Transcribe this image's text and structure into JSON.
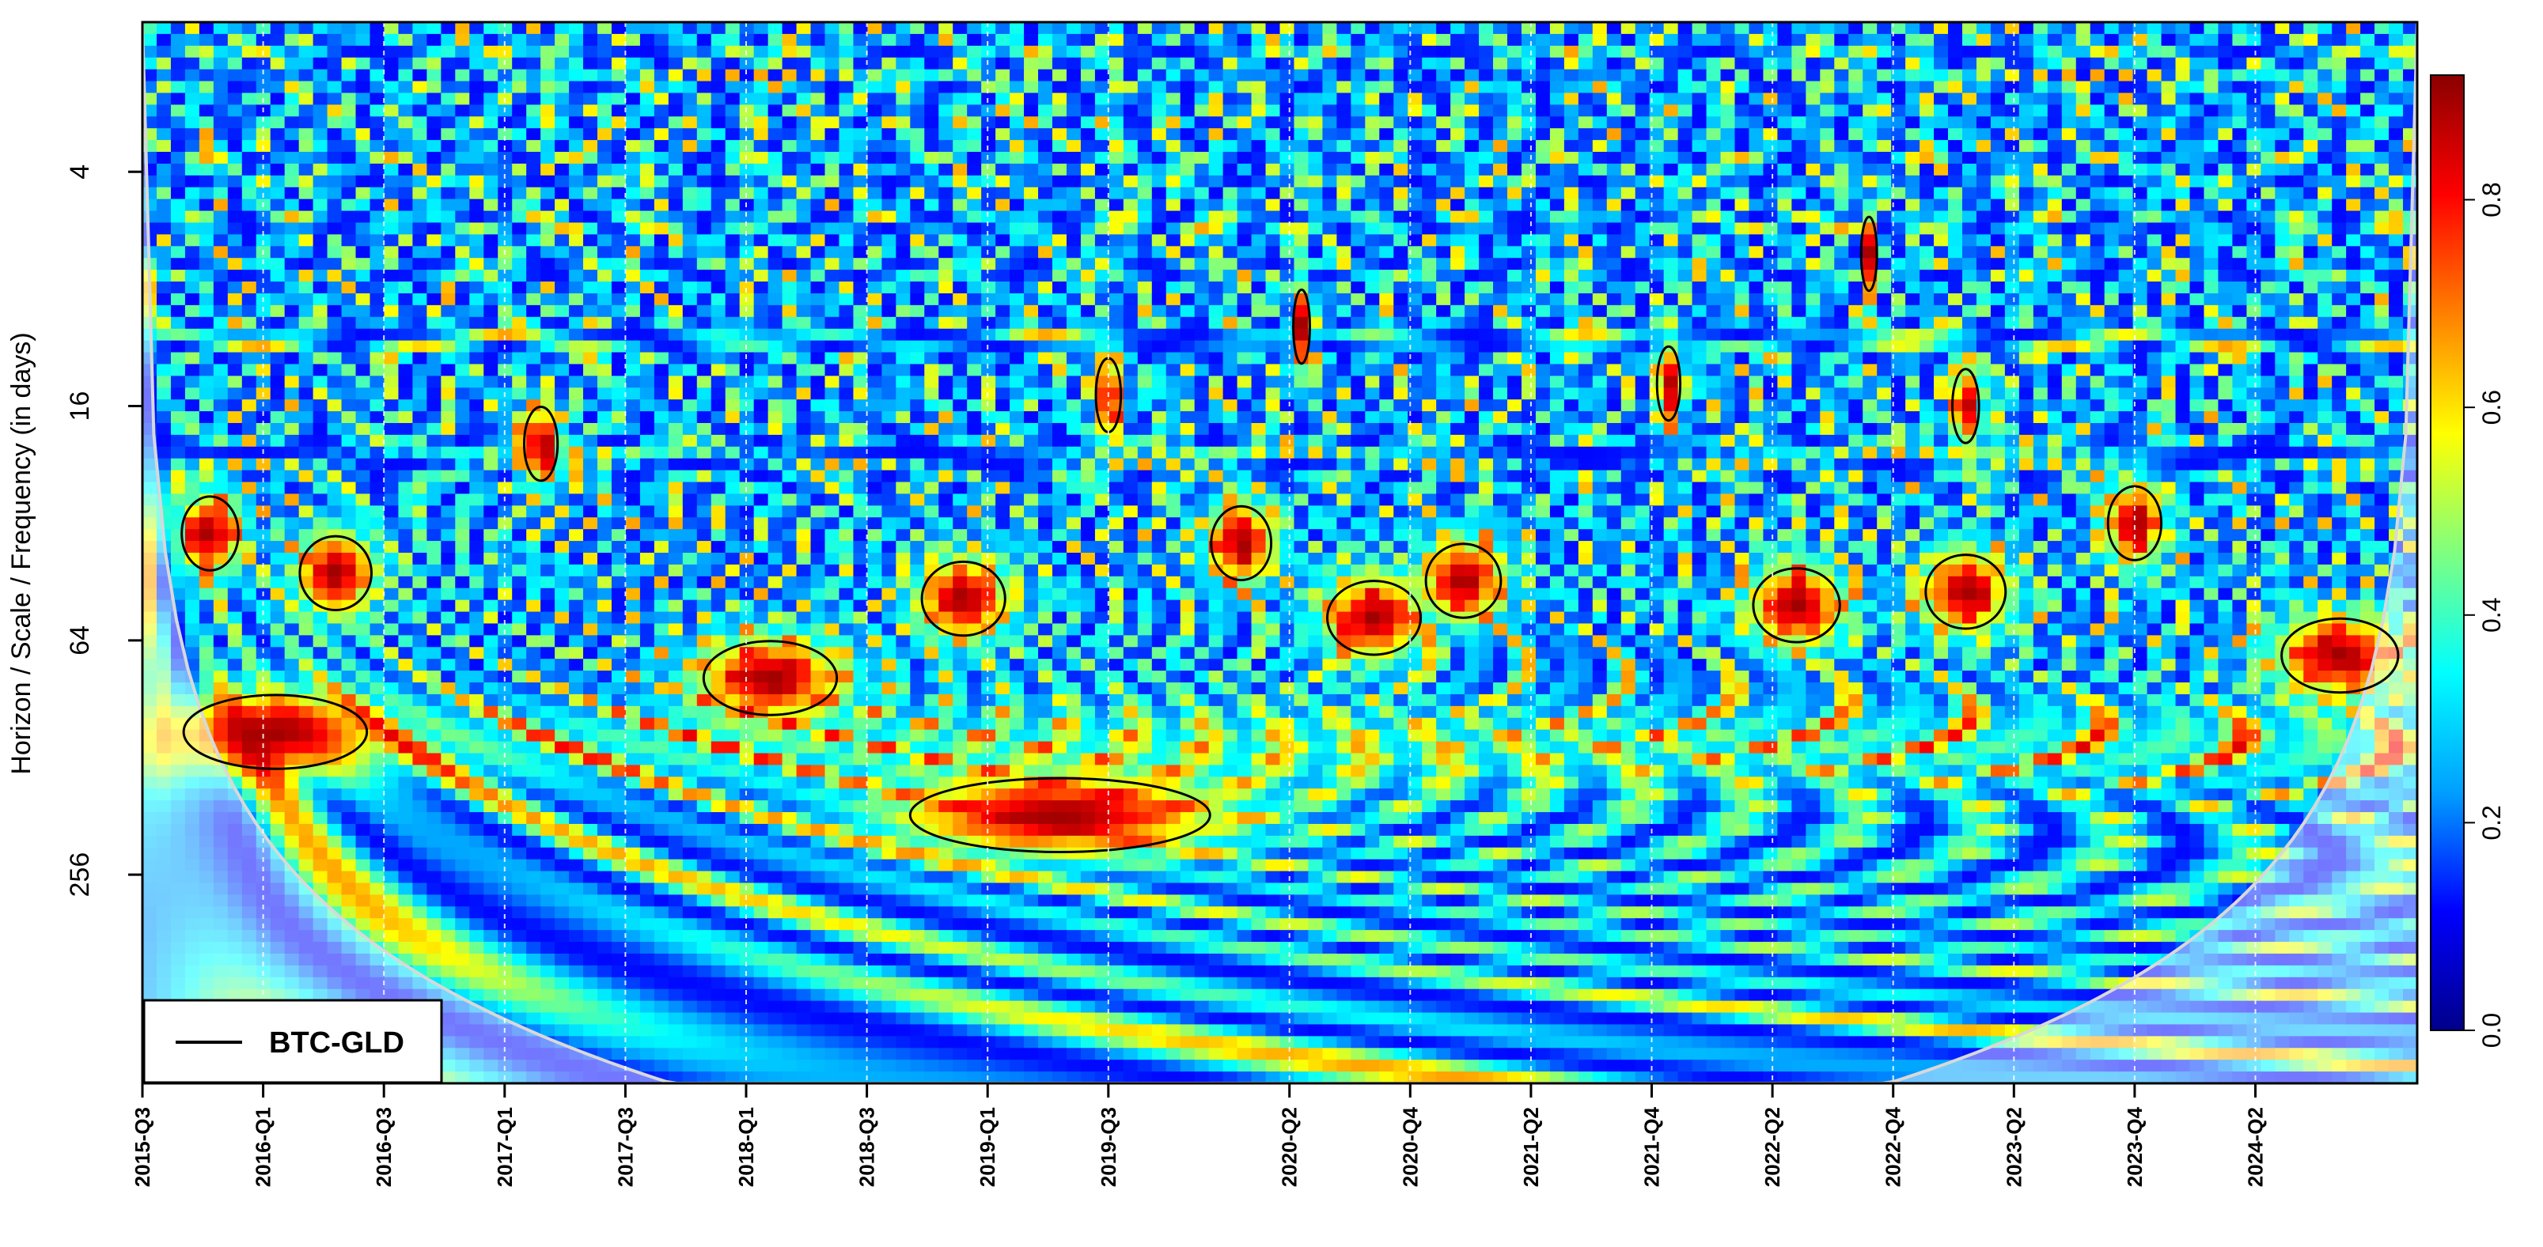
{
  "chart_data": {
    "type": "heatmap",
    "subtype": "wavelet coherence",
    "title": "",
    "xlabel": "",
    "ylabel": "Horizon / Scale / Frequency (in days)",
    "x_ticks": [
      "2015-Q3",
      "2016-Q1",
      "2016-Q3",
      "2017-Q1",
      "2017-Q3",
      "2018-Q1",
      "2018-Q3",
      "2019-Q1",
      "2019-Q3",
      "2020-Q2",
      "2020-Q4",
      "2021-Q2",
      "2021-Q4",
      "2022-Q2",
      "2022-Q4",
      "2023-Q2",
      "2023-Q4",
      "2024-Q2"
    ],
    "x_range_years": [
      2015.5,
      2024.92
    ],
    "y_scale": "log2",
    "y_ticks": [
      4,
      16,
      64,
      256
    ],
    "y_range_days": [
      1.65,
      880
    ],
    "colorbar": {
      "ticks": [
        "0.0",
        "0.2",
        "0.4",
        "0.6",
        "0.8"
      ],
      "range": [
        0,
        0.92
      ],
      "colors": [
        "#00008b",
        "#0000ff",
        "#00a0ff",
        "#00ffff",
        "#7fff7f",
        "#ffff00",
        "#ff8000",
        "#ff0000",
        "#8b0000"
      ]
    },
    "legend": {
      "label": "BTC-GLD",
      "position": "bottom-left"
    },
    "coherence_regions": [
      {
        "t": 2015.78,
        "period": 34
      },
      {
        "t": 2016.3,
        "period": 43
      },
      {
        "t": 2017.15,
        "period": 20
      },
      {
        "t": 2018.1,
        "period": 80
      },
      {
        "t": 2019.3,
        "period": 180
      },
      {
        "t": 2018.9,
        "period": 50
      },
      {
        "t": 2019.5,
        "period": 15
      },
      {
        "t": 2020.05,
        "period": 36
      },
      {
        "t": 2020.3,
        "period": 10
      },
      {
        "t": 2020.6,
        "period": 56
      },
      {
        "t": 2020.97,
        "period": 45
      },
      {
        "t": 2021.82,
        "period": 14
      },
      {
        "t": 2022.35,
        "period": 52
      },
      {
        "t": 2022.65,
        "period": 6.5
      },
      {
        "t": 2023.05,
        "period": 16
      },
      {
        "t": 2023.05,
        "period": 48
      },
      {
        "t": 2023.75,
        "period": 32
      },
      {
        "t": 2024.6,
        "period": 70
      },
      {
        "t": 2016.05,
        "period": 110
      }
    ]
  }
}
